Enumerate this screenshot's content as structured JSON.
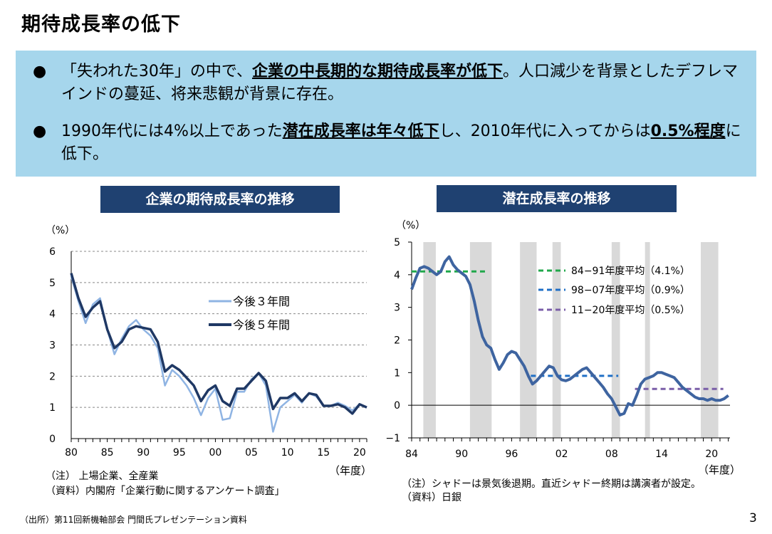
{
  "page": {
    "title": "期待成長率の低下",
    "bullets": [
      {
        "pre": "「失われた30年」の中で、",
        "em": "企業の中長期的な期待成長率が低下",
        "post": "。人口減少を背景としたデフレマインドの蔓延、将来悲観が背景に存在。"
      },
      {
        "pre": "1990年代には4%以上であった",
        "em": "潜在成長率は年々低下",
        "mid": "し、2010年代に入ってからは",
        "em2": "0.5%程度",
        "post": "に低下。"
      }
    ],
    "bullet_symbol": "●",
    "source": "（出所）第11回新機軸部会 門間氏プレゼンテーション資料",
    "page_number": "3"
  },
  "colors": {
    "bullet_bg": "#a6d6ec",
    "header_bg": "#1f4171",
    "series_3yr": "#8fb4e3",
    "series_5yr": "#1f3864",
    "potential_line": "#3e64a0",
    "shade": "#d9d9d9",
    "avg1": "#21a84b",
    "avg2": "#1f6fc6",
    "avg3": "#7a5ea8"
  },
  "chart_data": [
    {
      "type": "line",
      "header": "企業の期待成長率の推移",
      "ylabel": "（%）",
      "xlabel": "（年度）",
      "ylim": [
        0,
        6
      ],
      "yticks": [
        "0",
        "1",
        "2",
        "3",
        "4",
        "5",
        "6"
      ],
      "xlim": [
        1980,
        2021
      ],
      "xticks": [
        {
          "v": 1980,
          "t": "80"
        },
        {
          "v": 1985,
          "t": "85"
        },
        {
          "v": 1990,
          "t": "90"
        },
        {
          "v": 1995,
          "t": "95"
        },
        {
          "v": 2000,
          "t": "00"
        },
        {
          "v": 2005,
          "t": "05"
        },
        {
          "v": 2010,
          "t": "10"
        },
        {
          "v": 2015,
          "t": "15"
        },
        {
          "v": 2020,
          "t": "20"
        }
      ],
      "grid": "horizontal-dashed",
      "legend": "center",
      "notes": [
        "（注） 上場企業、全産業",
        "（資料）内閣府「企業行動に関するアンケート調査」"
      ],
      "series": [
        {
          "name": "今後３年間",
          "x": [
            1980,
            1981,
            1982,
            1983,
            1984,
            1985,
            1986,
            1987,
            1988,
            1989,
            1990,
            1991,
            1992,
            1993,
            1994,
            1995,
            1996,
            1997,
            1998,
            1999,
            2000,
            2001,
            2002,
            2003,
            2004,
            2005,
            2006,
            2007,
            2008,
            2009,
            2010,
            2011,
            2012,
            2013,
            2014,
            2015,
            2016,
            2017,
            2018,
            2019,
            2020,
            2021
          ],
          "y": [
            5.2,
            4.4,
            3.7,
            4.3,
            4.5,
            3.5,
            2.7,
            3.2,
            3.6,
            3.8,
            3.5,
            3.3,
            2.9,
            1.7,
            2.2,
            2.0,
            1.7,
            1.3,
            0.75,
            1.3,
            1.6,
            0.6,
            0.65,
            1.5,
            1.5,
            1.9,
            2.1,
            1.7,
            0.22,
            1.0,
            1.2,
            1.4,
            1.15,
            1.45,
            1.35,
            1.05,
            1.05,
            1.15,
            1.05,
            0.9,
            1.1,
            1.0
          ]
        },
        {
          "name": "今後５年間",
          "x": [
            1980,
            1981,
            1982,
            1983,
            1984,
            1985,
            1986,
            1987,
            1988,
            1989,
            1990,
            1991,
            1992,
            1993,
            1994,
            1995,
            1996,
            1997,
            1998,
            1999,
            2000,
            2001,
            2002,
            2003,
            2004,
            2005,
            2006,
            2007,
            2008,
            2009,
            2010,
            2011,
            2012,
            2013,
            2014,
            2015,
            2016,
            2017,
            2018,
            2019,
            2020,
            2021
          ],
          "y": [
            5.3,
            4.5,
            3.9,
            4.2,
            4.4,
            3.5,
            2.9,
            3.1,
            3.5,
            3.6,
            3.55,
            3.5,
            3.1,
            2.15,
            2.35,
            2.2,
            1.95,
            1.7,
            1.2,
            1.55,
            1.7,
            1.2,
            1.05,
            1.6,
            1.6,
            1.85,
            2.1,
            1.85,
            0.95,
            1.3,
            1.3,
            1.45,
            1.2,
            1.45,
            1.4,
            1.05,
            1.05,
            1.1,
            1.0,
            0.8,
            1.1,
            1.0
          ]
        }
      ]
    },
    {
      "type": "line",
      "header": "潜在成長率の推移",
      "ylabel": "（%）",
      "xlabel": "（年度）",
      "ylim": [
        -1,
        5
      ],
      "yticks": [
        "−1",
        "0",
        "1",
        "2",
        "3",
        "4",
        "5"
      ],
      "xlim": [
        1984,
        2022.2
      ],
      "xticks": [
        {
          "v": 1984,
          "t": "84"
        },
        {
          "v": 1990,
          "t": "90"
        },
        {
          "v": 1996,
          "t": "96"
        },
        {
          "v": 2002,
          "t": "02"
        },
        {
          "v": 2008,
          "t": "08"
        },
        {
          "v": 2014,
          "t": "14"
        },
        {
          "v": 2020,
          "t": "20"
        }
      ],
      "recession_shading": [
        [
          1985.4,
          1986.9
        ],
        [
          1991.0,
          1993.6
        ],
        [
          1997.0,
          1999.0
        ],
        [
          2000.9,
          2001.9
        ],
        [
          2008.0,
          2009.0
        ],
        [
          2012.0,
          2012.6
        ],
        [
          2018.7,
          2020.8
        ]
      ],
      "averages": [
        {
          "label": "84−91年度平均（4.1%）",
          "value": 4.1,
          "x": [
            1984,
            1992.8
          ]
        },
        {
          "label": "98−07年度平均（0.9%）",
          "value": 0.9,
          "x": [
            1998.3,
            2008.8
          ]
        },
        {
          "label": "11−20年度平均（0.5%）",
          "value": 0.5,
          "x": [
            2010.8,
            2021.4
          ]
        }
      ],
      "legend": "top-right",
      "notes": [
        "（注）シャドーは景気後退期。直近シャドー終期は講演者が設定。",
        "（資料）日銀"
      ],
      "series": [
        {
          "name": "",
          "x": [
            1984.0,
            1984.5,
            1985.0,
            1985.5,
            1986.0,
            1986.5,
            1987.0,
            1987.5,
            1988.0,
            1988.5,
            1989.0,
            1989.5,
            1990.0,
            1990.5,
            1991.0,
            1991.5,
            1992.0,
            1992.5,
            1993.0,
            1993.5,
            1994.0,
            1994.5,
            1995.0,
            1995.5,
            1996.0,
            1996.5,
            1997.0,
            1997.5,
            1998.0,
            1998.5,
            1999.0,
            1999.5,
            2000.0,
            2000.5,
            2001.0,
            2001.5,
            2002.0,
            2002.5,
            2003.0,
            2003.5,
            2004.0,
            2004.5,
            2005.0,
            2005.5,
            2006.0,
            2006.5,
            2007.0,
            2007.5,
            2008.0,
            2008.5,
            2009.0,
            2009.5,
            2010.0,
            2010.5,
            2011.0,
            2011.5,
            2012.0,
            2012.5,
            2013.0,
            2013.5,
            2014.0,
            2014.5,
            2015.0,
            2015.5,
            2016.0,
            2016.5,
            2017.0,
            2017.5,
            2018.0,
            2018.5,
            2019.0,
            2019.5,
            2020.0,
            2020.5,
            2021.0,
            2021.5,
            2022.0
          ],
          "y": [
            3.55,
            3.9,
            4.2,
            4.25,
            4.2,
            4.1,
            4.0,
            4.1,
            4.4,
            4.55,
            4.3,
            4.15,
            4.05,
            3.95,
            3.7,
            3.2,
            2.6,
            2.1,
            1.85,
            1.75,
            1.4,
            1.1,
            1.3,
            1.55,
            1.65,
            1.6,
            1.4,
            1.2,
            0.9,
            0.65,
            0.75,
            0.9,
            1.05,
            1.2,
            1.15,
            0.9,
            0.78,
            0.75,
            0.8,
            0.9,
            1.0,
            1.1,
            1.15,
            1.0,
            0.85,
            0.7,
            0.55,
            0.35,
            0.2,
            -0.05,
            -0.3,
            -0.25,
            0.05,
            0.0,
            0.3,
            0.65,
            0.8,
            0.85,
            0.9,
            1.0,
            1.0,
            0.95,
            0.9,
            0.85,
            0.7,
            0.55,
            0.45,
            0.35,
            0.25,
            0.2,
            0.2,
            0.15,
            0.2,
            0.15,
            0.15,
            0.2,
            0.3
          ]
        }
      ]
    }
  ]
}
